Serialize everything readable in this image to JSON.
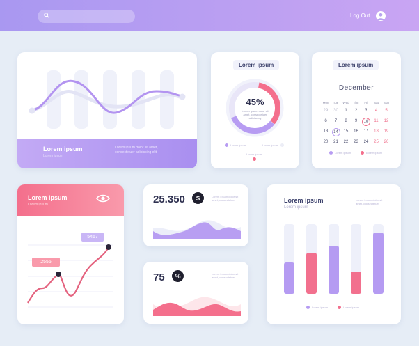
{
  "header": {
    "search_placeholder": "",
    "logout_label": "Log Out"
  },
  "wave_card": {
    "title": "Lorem ipsum",
    "subtitle": "Lorem ipsum",
    "body": "Lorem ipsum dolor sit amet, consectetuer adipiscing elit."
  },
  "donut_card": {
    "title": "Lorem ipsum",
    "percent_label": "45%",
    "percent": 45,
    "caption": "Lorem ipsum dolor sit amet, consectetuer adipiscing",
    "legend": [
      "Lorem ipsum",
      "Lorem ipsum",
      "Lorem ipsum"
    ],
    "colors": {
      "purple": "#b79cf2",
      "pink": "#f46f8c"
    }
  },
  "calendar": {
    "title": "Lorem ipsum",
    "month": "December",
    "weekdays": [
      "Mon",
      "Tue",
      "Wed",
      "Thu",
      "Fri",
      "Sat",
      "Sun"
    ],
    "weeks": [
      [
        "29",
        "30",
        "1",
        "2",
        "3",
        "4",
        "5"
      ],
      [
        "6",
        "7",
        "8",
        "9",
        "10",
        "11",
        "12"
      ],
      [
        "13",
        "14",
        "15",
        "16",
        "17",
        "18",
        "19"
      ],
      [
        "20",
        "21",
        "22",
        "23",
        "24",
        "25",
        "26"
      ]
    ],
    "circled_days": [
      "10",
      "14"
    ],
    "legend": [
      "Lorem ipsum",
      "Lorem ipsum"
    ]
  },
  "line_card": {
    "title": "Lorem ipsum",
    "subtitle": "Lorem ipsum",
    "label_high": "5467",
    "label_low": "2555"
  },
  "stat_card_1": {
    "value": "25.350",
    "badge": "$",
    "caption": "Lorem ipsum dolor sit amet, consectetuer"
  },
  "stat_card_2": {
    "value": "75",
    "badge": "%",
    "caption": "Lorem ipsum dolor sit amet, consectetuer"
  },
  "bar_card": {
    "title": "Lorem ipsum",
    "subtitle": "Lorem ipsum",
    "caption": "Lorem ipsum dolor sit amet, consectetuer",
    "legend": [
      "Lorem ipsum",
      "Lorem ipsum"
    ]
  },
  "chart_data": {
    "type": "bar",
    "title": "Lorem ipsum",
    "categories": [
      "",
      "",
      "",
      "",
      ""
    ],
    "series": [
      {
        "name": "",
        "values": [
          45,
          59,
          69,
          32,
          88
        ],
        "colors": [
          "purple",
          "pink",
          "purple",
          "pink",
          "purple"
        ]
      }
    ],
    "ylim": [
      0,
      100
    ],
    "colors": {
      "purple": "#b59bf2",
      "pink": "#f2708e",
      "track": "#eef0fa"
    }
  }
}
